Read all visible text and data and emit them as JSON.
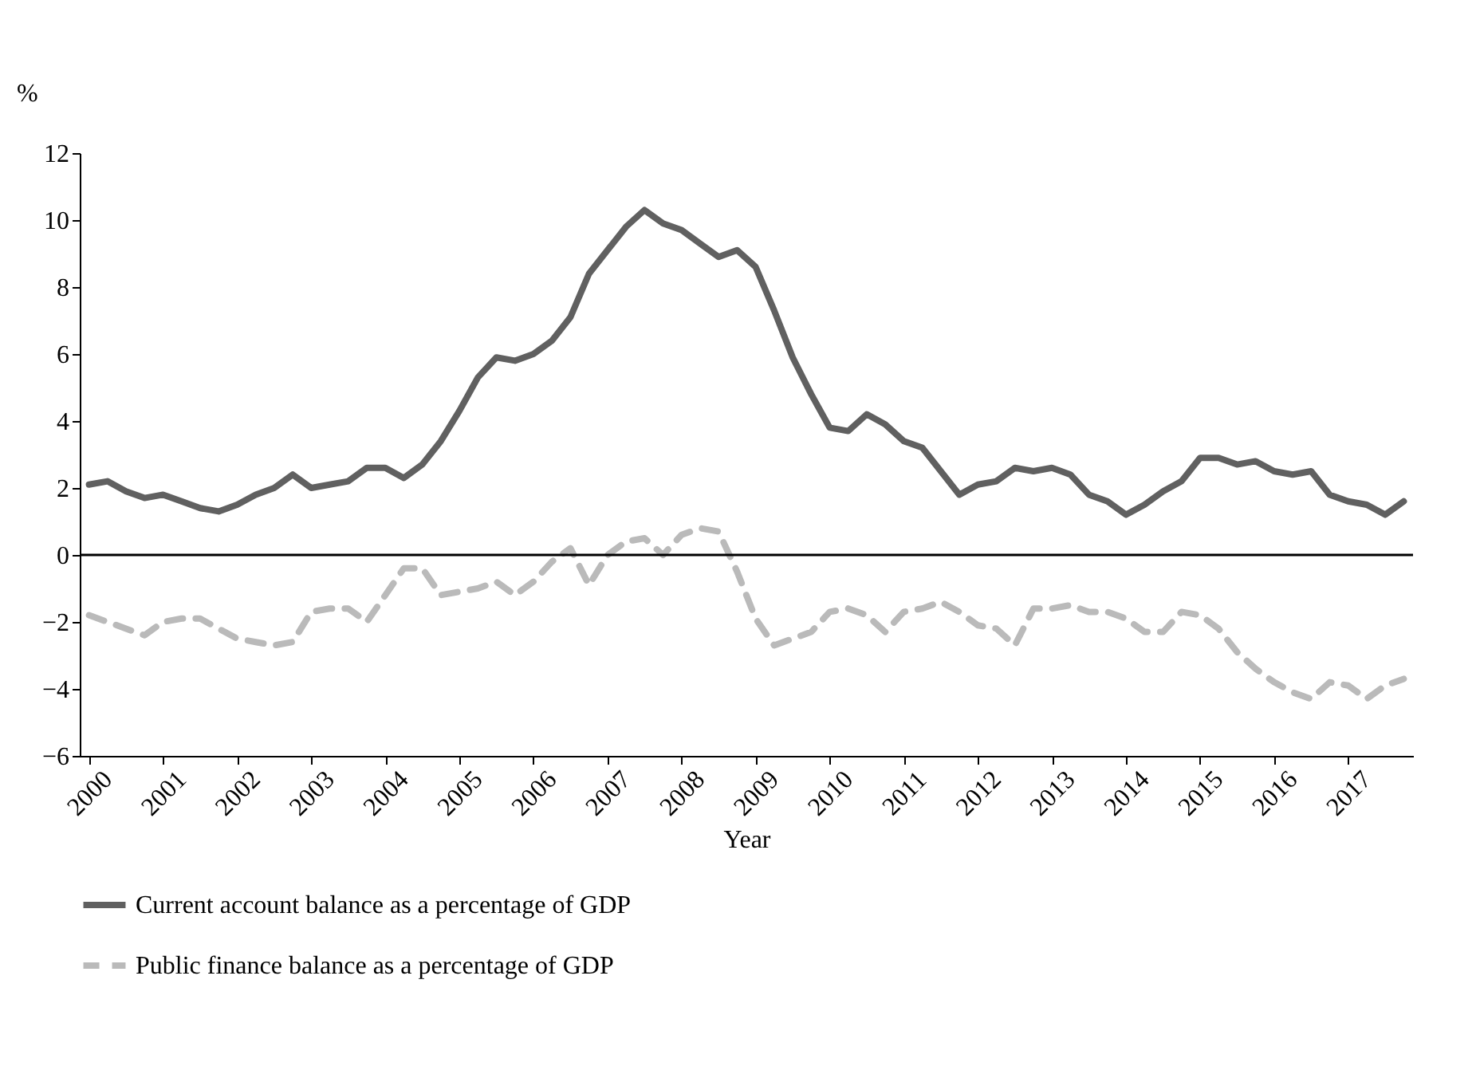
{
  "chart_data": {
    "type": "line",
    "ylabel": "%",
    "xlabel": "Year",
    "categories": [
      "2000",
      null,
      null,
      null,
      "2001",
      null,
      null,
      null,
      "2002",
      null,
      null,
      null,
      "2003",
      null,
      null,
      null,
      "2004",
      null,
      null,
      null,
      "2005",
      null,
      null,
      null,
      "2006",
      null,
      null,
      null,
      "2007",
      null,
      null,
      null,
      "2008",
      null,
      null,
      null,
      "2009",
      null,
      null,
      null,
      "2010",
      null,
      null,
      null,
      "2011",
      null,
      null,
      null,
      "2012",
      null,
      null,
      null,
      "2013",
      null,
      null,
      null,
      "2014",
      null,
      null,
      null,
      "2015",
      null,
      null,
      null,
      "2016",
      null,
      null,
      null,
      "2017",
      null,
      null,
      null
    ],
    "series": [
      {
        "name": "Current account balance as a percentage of GDP",
        "color": "#606060",
        "line_style": "solid",
        "values": [
          2.1,
          2.2,
          1.9,
          1.7,
          1.8,
          1.6,
          1.4,
          1.3,
          1.5,
          1.8,
          2.0,
          2.4,
          2.0,
          2.1,
          2.2,
          2.6,
          2.6,
          2.3,
          2.7,
          3.4,
          4.3,
          5.3,
          5.9,
          5.8,
          6.0,
          6.4,
          7.1,
          8.4,
          9.1,
          9.8,
          10.3,
          9.9,
          9.7,
          9.3,
          8.9,
          9.1,
          8.6,
          7.3,
          5.9,
          4.8,
          3.8,
          3.7,
          4.2,
          3.9,
          3.4,
          3.2,
          2.5,
          1.8,
          2.1,
          2.2,
          2.6,
          2.5,
          2.6,
          2.4,
          1.8,
          1.6,
          1.2,
          1.5,
          1.9,
          2.2,
          2.9,
          2.9,
          2.7,
          2.8,
          2.5,
          2.4,
          2.5,
          1.8,
          1.6,
          1.5,
          1.2,
          1.6
        ]
      },
      {
        "name": "Public finance balance as a percentage of GDP",
        "color": "#bababa",
        "line_style": "dashed",
        "values": [
          -1.8,
          -2.0,
          -2.2,
          -2.4,
          -2.0,
          -1.9,
          -1.9,
          -2.2,
          -2.5,
          -2.6,
          -2.7,
          -2.6,
          -1.7,
          -1.6,
          -1.6,
          -2.0,
          -1.2,
          -0.4,
          -0.4,
          -1.2,
          -1.1,
          -1.0,
          -0.8,
          -1.2,
          -0.8,
          -0.2,
          0.2,
          -0.9,
          0.0,
          0.4,
          0.5,
          0.0,
          0.6,
          0.8,
          0.7,
          -0.5,
          -1.9,
          -2.7,
          -2.5,
          -2.3,
          -1.7,
          -1.6,
          -1.8,
          -2.3,
          -1.7,
          -1.6,
          -1.4,
          -1.7,
          -2.1,
          -2.2,
          -2.7,
          -1.6,
          -1.6,
          -1.5,
          -1.7,
          -1.7,
          -1.9,
          -2.3,
          -2.3,
          -1.7,
          -1.8,
          -2.2,
          -2.9,
          -3.4,
          -3.8,
          -4.1,
          -4.3,
          -3.8,
          -3.9,
          -4.3,
          -3.9,
          -3.7
        ]
      }
    ],
    "ylim": [
      -6,
      12
    ],
    "yticks": [
      -6,
      -4,
      -2,
      0,
      2,
      4,
      6,
      8,
      10,
      12
    ],
    "ref_lines": [
      {
        "axis": "y",
        "value": 0,
        "color": "#000000"
      }
    ],
    "grid": false,
    "legend": "bottom"
  }
}
